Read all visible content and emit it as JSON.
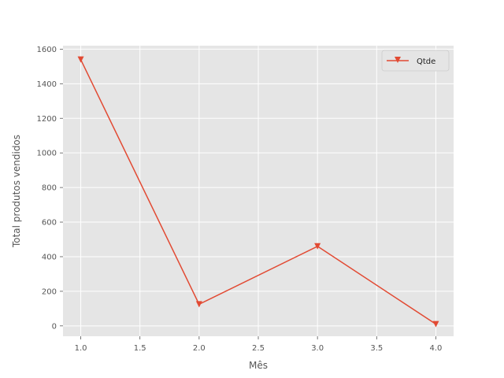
{
  "chart_data": {
    "type": "line",
    "title": "",
    "xlabel": "Mês",
    "ylabel": "Total produtos vendidos",
    "xlim": [
      0.85,
      4.15
    ],
    "ylim": [
      -60,
      1620
    ],
    "x_ticks": [
      1.0,
      1.5,
      2.0,
      2.5,
      3.0,
      3.5,
      4.0
    ],
    "x_tick_labels": [
      "1.0",
      "1.5",
      "2.0",
      "2.5",
      "3.0",
      "3.5",
      "4.0"
    ],
    "y_ticks": [
      0,
      200,
      400,
      600,
      800,
      1000,
      1200,
      1400,
      1600
    ],
    "y_tick_labels": [
      "0",
      "200",
      "400",
      "600",
      "800",
      "1000",
      "1200",
      "1400",
      "1600"
    ],
    "grid": true,
    "legend_position": "top-right",
    "series": [
      {
        "name": "Qtde",
        "x": [
          1,
          2,
          3,
          4
        ],
        "y": [
          1540,
          125,
          460,
          10
        ],
        "marker": "triangle-down",
        "color": "#E24A33"
      }
    ],
    "colors": {
      "plot_background": "#E5E5E5",
      "grid": "#FFFFFF",
      "text": "#555555",
      "tick_mark": "#555555"
    }
  }
}
